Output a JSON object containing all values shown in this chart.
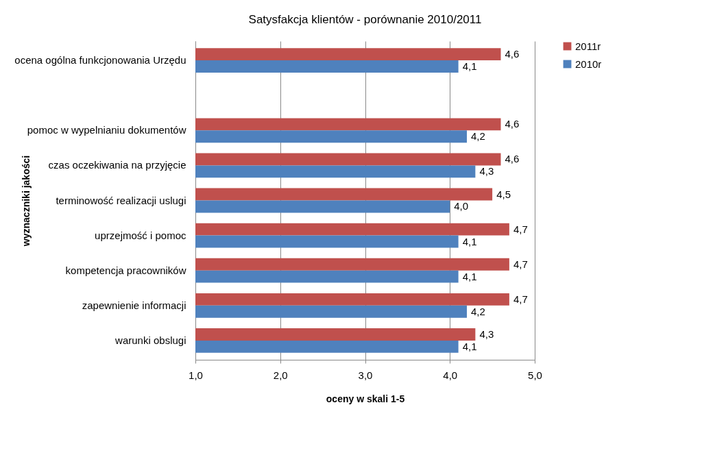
{
  "chart_data": {
    "type": "bar",
    "orientation": "horizontal",
    "title": "Satysfakcja klientów - porównanie 2010/2011",
    "xlabel": "oceny w skali 1-5",
    "ylabel": "wyznaczniki jakości",
    "categories": [
      "ocena ogólna funkcjonowania Urzędu",
      null,
      "pomoc w wypelnianiu dokumentów",
      "czas oczekiwania na przyjęcie",
      "terminowość realizacji uslugi",
      "uprzejmość i pomoc",
      "kompetencja pracowników",
      "zapewnienie  informacji",
      "warunki obslugi"
    ],
    "series": [
      {
        "name": "2011r",
        "color": "#c0504d",
        "values": [
          4.6,
          null,
          4.6,
          4.6,
          4.5,
          4.7,
          4.7,
          4.7,
          4.3
        ],
        "value_labels": [
          "4,6",
          null,
          "4,6",
          "4,6",
          "4,5",
          "4,7",
          "4,7",
          "4,7",
          "4,3"
        ]
      },
      {
        "name": "2010r",
        "color": "#4f81bd",
        "values": [
          4.1,
          null,
          4.2,
          4.3,
          4.0,
          4.1,
          4.1,
          4.2,
          4.1
        ],
        "value_labels": [
          "4,1",
          null,
          "4,2",
          "4,3",
          "4,0",
          "4,1",
          "4,1",
          "4,2",
          "4,1"
        ]
      }
    ],
    "xlim": [
      1,
      5
    ],
    "xticks": [
      {
        "value": 1,
        "label": "1,0"
      },
      {
        "value": 2,
        "label": "2,0"
      },
      {
        "value": 3,
        "label": "3,0"
      },
      {
        "value": 4,
        "label": "4,0"
      },
      {
        "value": 5,
        "label": "5,0"
      }
    ],
    "grid": "x",
    "legend": "right"
  }
}
